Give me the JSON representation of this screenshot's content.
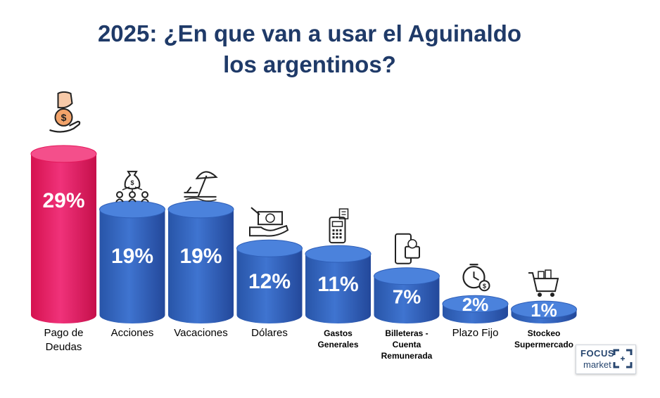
{
  "title": {
    "line1": "2025: ¿En que van a usar el Aguinaldo",
    "line2": "los argentinos?"
  },
  "chart_data": {
    "type": "bar",
    "title": "2025: ¿En que van a usar el Aguinaldo los argentinos?",
    "xlabel": "",
    "ylabel": "",
    "ylim": [
      0,
      30
    ],
    "categories": [
      [
        "Pago de",
        "Deudas"
      ],
      [
        "Acciones"
      ],
      [
        "Vacaciones"
      ],
      [
        "Dólares"
      ],
      [
        "Gastos",
        "Generales"
      ],
      [
        "Billeteras -",
        "Cuenta",
        "Remunerada"
      ],
      [
        "Plazo Fijo"
      ],
      [
        "Stockeo",
        "Supermercado"
      ]
    ],
    "values": [
      29,
      19,
      19,
      12,
      11,
      7,
      2,
      1
    ],
    "value_labels": [
      "29%",
      "19%",
      "19%",
      "12%",
      "11%",
      "7%",
      "2%",
      "1%"
    ],
    "colors": [
      "#e3195b",
      "#2f5fb8",
      "#2f5fb8",
      "#2f5fb8",
      "#2f5fb8",
      "#2f5fb8",
      "#2f5fb8",
      "#2f5fb8"
    ],
    "icons": [
      "hand-money-icon",
      "money-bag-network-icon",
      "beach-umbrella-icon",
      "cash-hand-icon",
      "pos-terminal-icon",
      "phone-wallet-icon",
      "clock-coin-icon",
      "shopping-cart-icon"
    ]
  },
  "logo": {
    "line1": "FOCUS",
    "line2": "market"
  }
}
